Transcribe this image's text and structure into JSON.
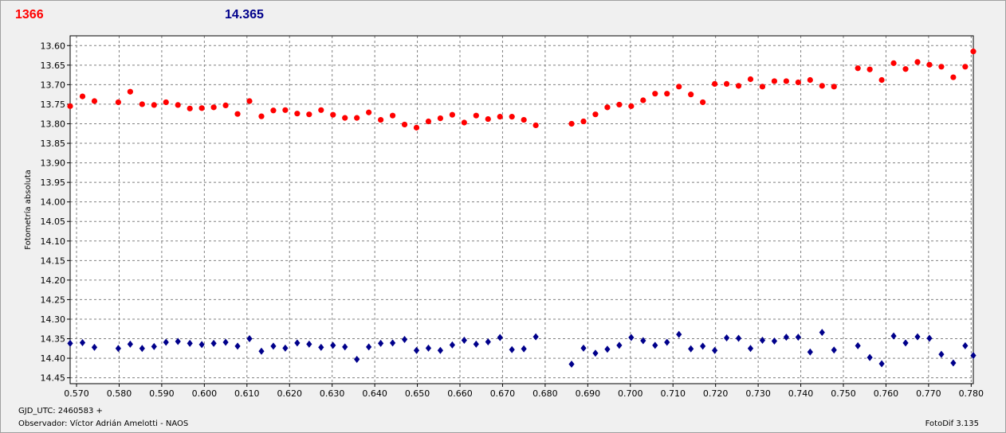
{
  "header": {
    "left_value": "1366",
    "right_value": "14.365"
  },
  "footer": {
    "gjd": "GJD_UTC: 2460583 +",
    "observer": "Observador: Víctor Adrián Amelotti - NAOS",
    "version": "FotoDif 3.135"
  },
  "colors": {
    "red_series": "#ff0000",
    "blue_series": "#00008b",
    "grid": "#808080",
    "plot_background": "#ffffff"
  },
  "chart_data": {
    "type": "scatter",
    "title": "",
    "xlabel": "",
    "ylabel": "Fotometría absoluta",
    "xlim": [
      0.5685,
      0.7805
    ],
    "ylim": [
      13.575,
      14.465
    ],
    "y_inverted": true,
    "grid": true,
    "x_ticks": [
      "0.570",
      "0.580",
      "0.590",
      "0.600",
      "0.610",
      "0.620",
      "0.630",
      "0.640",
      "0.650",
      "0.660",
      "0.670",
      "0.680",
      "0.690",
      "0.700",
      "0.710",
      "0.720",
      "0.730",
      "0.740",
      "0.750",
      "0.760",
      "0.770",
      "0.780"
    ],
    "y_ticks": [
      "13.60",
      "13.65",
      "13.70",
      "13.75",
      "13.80",
      "13.85",
      "13.90",
      "13.95",
      "14.00",
      "14.05",
      "14.10",
      "14.15",
      "14.20",
      "14.25",
      "14.30",
      "14.35",
      "14.40",
      "14.45"
    ],
    "series": [
      {
        "color": "#ff0000",
        "x": [
          0.5685,
          0.5714,
          0.5742,
          0.5798,
          0.5826,
          0.5854,
          0.5882,
          0.591,
          0.5938,
          0.5966,
          0.5994,
          0.6022,
          0.605,
          0.6078,
          0.6106,
          0.6134,
          0.6162,
          0.619,
          0.6218,
          0.6246,
          0.6274,
          0.6302,
          0.633,
          0.6358,
          0.6386,
          0.6414,
          0.6442,
          0.647,
          0.6498,
          0.6526,
          0.6554,
          0.6582,
          0.661,
          0.6638,
          0.6666,
          0.6694,
          0.6722,
          0.675,
          0.6778,
          0.6862,
          0.689,
          0.6918,
          0.6946,
          0.6974,
          0.7002,
          0.703,
          0.7058,
          0.7086,
          0.7114,
          0.7142,
          0.717,
          0.7198,
          0.7226,
          0.7254,
          0.7282,
          0.731,
          0.7338,
          0.7366,
          0.7394,
          0.7422,
          0.745,
          0.7478,
          0.7534,
          0.7562,
          0.759,
          0.7618,
          0.7646,
          0.7674,
          0.7702,
          0.773,
          0.7758,
          0.7786,
          0.7805
        ],
        "values": [
          13.755,
          13.73,
          13.742,
          13.745,
          13.718,
          13.75,
          13.752,
          13.745,
          13.752,
          13.761,
          13.76,
          13.758,
          13.753,
          13.775,
          13.742,
          13.781,
          13.766,
          13.765,
          13.774,
          13.776,
          13.765,
          13.777,
          13.785,
          13.785,
          13.771,
          13.79,
          13.779,
          13.802,
          13.81,
          13.794,
          13.786,
          13.777,
          13.797,
          13.779,
          13.788,
          13.782,
          13.782,
          13.79,
          13.804,
          13.8,
          13.794,
          13.776,
          13.758,
          13.751,
          13.755,
          13.74,
          13.723,
          13.723,
          13.705,
          13.725,
          13.745,
          13.698,
          13.698,
          13.703,
          13.686,
          13.705,
          13.691,
          13.691,
          13.694,
          13.688,
          13.703,
          13.705,
          13.658,
          13.661,
          13.688,
          13.645,
          13.66,
          13.642,
          13.649,
          13.654,
          13.681,
          13.654,
          13.615
        ]
      },
      {
        "color": "#00008b",
        "x": [
          0.5685,
          0.5714,
          0.5742,
          0.5798,
          0.5826,
          0.5854,
          0.5882,
          0.591,
          0.5938,
          0.5966,
          0.5994,
          0.6022,
          0.605,
          0.6078,
          0.6106,
          0.6134,
          0.6162,
          0.619,
          0.6218,
          0.6246,
          0.6274,
          0.6302,
          0.633,
          0.6358,
          0.6386,
          0.6414,
          0.6442,
          0.647,
          0.6498,
          0.6526,
          0.6554,
          0.6582,
          0.661,
          0.6638,
          0.6666,
          0.6694,
          0.6722,
          0.675,
          0.6778,
          0.6862,
          0.689,
          0.6918,
          0.6946,
          0.6974,
          0.7002,
          0.703,
          0.7058,
          0.7086,
          0.7114,
          0.7142,
          0.717,
          0.7198,
          0.7226,
          0.7254,
          0.7282,
          0.731,
          0.7338,
          0.7366,
          0.7394,
          0.7422,
          0.745,
          0.7478,
          0.7534,
          0.7562,
          0.759,
          0.7618,
          0.7646,
          0.7674,
          0.7702,
          0.773,
          0.7758,
          0.7786,
          0.7805
        ],
        "values": [
          14.362,
          14.36,
          14.372,
          14.375,
          14.364,
          14.375,
          14.37,
          14.359,
          14.357,
          14.362,
          14.365,
          14.362,
          14.359,
          14.369,
          14.35,
          14.382,
          14.369,
          14.374,
          14.361,
          14.364,
          14.372,
          14.367,
          14.371,
          14.403,
          14.371,
          14.362,
          14.361,
          14.352,
          14.38,
          14.374,
          14.38,
          14.366,
          14.354,
          14.364,
          14.358,
          14.347,
          14.378,
          14.376,
          14.345,
          14.415,
          14.374,
          14.387,
          14.377,
          14.367,
          14.347,
          14.355,
          14.367,
          14.359,
          14.339,
          14.376,
          14.369,
          14.38,
          14.348,
          14.349,
          14.375,
          14.354,
          14.356,
          14.346,
          14.346,
          14.384,
          14.334,
          14.379,
          14.368,
          14.398,
          14.414,
          14.343,
          14.361,
          14.345,
          14.349,
          14.39,
          14.412,
          14.368,
          14.393
        ]
      }
    ]
  }
}
